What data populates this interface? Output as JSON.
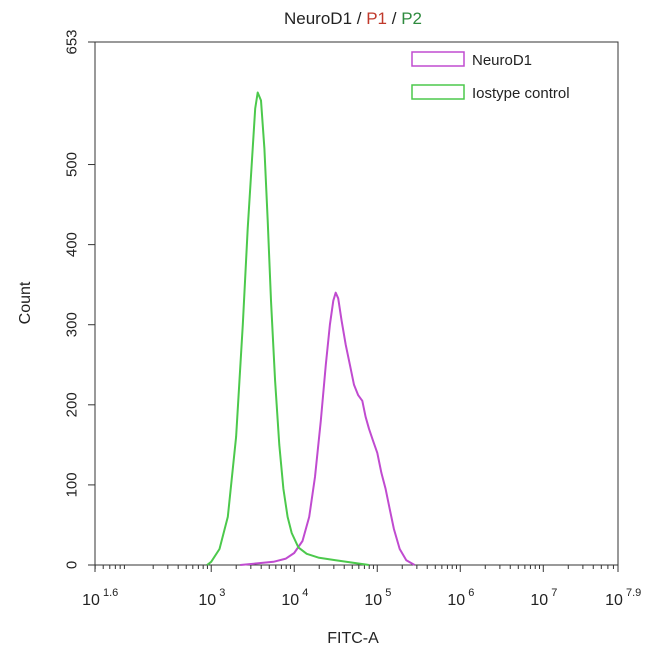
{
  "chart_data": {
    "type": "line",
    "title_parts": [
      {
        "text": "NeuroD1",
        "color": "#222222"
      },
      {
        "text": " / ",
        "color": "#222222"
      },
      {
        "text": "P1",
        "color": "#c0392b"
      },
      {
        "text": " / ",
        "color": "#222222"
      },
      {
        "text": "P2",
        "color": "#2e8b3e"
      }
    ],
    "xlabel": "FITC-A",
    "ylabel": "Count",
    "x_scale": "log10",
    "xlim": [
      1.6,
      7.9
    ],
    "ylim": [
      0,
      653
    ],
    "y_ticks": [
      0,
      100,
      200,
      300,
      400,
      500,
      653
    ],
    "x_ticks": [
      {
        "exp": 1.6,
        "base": "10",
        "sup": "1.6"
      },
      {
        "exp": 3,
        "base": "10",
        "sup": "3"
      },
      {
        "exp": 4,
        "base": "10",
        "sup": "4"
      },
      {
        "exp": 5,
        "base": "10",
        "sup": "5"
      },
      {
        "exp": 6,
        "base": "10",
        "sup": "6"
      },
      {
        "exp": 7,
        "base": "10",
        "sup": "7"
      },
      {
        "exp": 7.9,
        "base": "10",
        "sup": "7.9"
      }
    ],
    "legend_position": "top-right",
    "grid": false,
    "series": [
      {
        "name": "NeuroD1",
        "color": "#c04bd0",
        "points": [
          [
            3.35,
            0
          ],
          [
            3.55,
            2
          ],
          [
            3.75,
            4
          ],
          [
            3.9,
            8
          ],
          [
            4.0,
            15
          ],
          [
            4.1,
            30
          ],
          [
            4.18,
            60
          ],
          [
            4.25,
            110
          ],
          [
            4.32,
            180
          ],
          [
            4.38,
            250
          ],
          [
            4.43,
            300
          ],
          [
            4.47,
            330
          ],
          [
            4.5,
            340
          ],
          [
            4.53,
            333
          ],
          [
            4.57,
            305
          ],
          [
            4.62,
            275
          ],
          [
            4.67,
            250
          ],
          [
            4.72,
            225
          ],
          [
            4.77,
            212
          ],
          [
            4.82,
            205
          ],
          [
            4.86,
            185
          ],
          [
            4.9,
            170
          ],
          [
            4.95,
            155
          ],
          [
            5.0,
            140
          ],
          [
            5.05,
            115
          ],
          [
            5.1,
            95
          ],
          [
            5.15,
            70
          ],
          [
            5.2,
            45
          ],
          [
            5.27,
            20
          ],
          [
            5.35,
            6
          ],
          [
            5.45,
            0
          ]
        ]
      },
      {
        "name": "Iostype control",
        "color": "#4cc94c",
        "points": [
          [
            2.95,
            0
          ],
          [
            3.0,
            4
          ],
          [
            3.1,
            20
          ],
          [
            3.2,
            60
          ],
          [
            3.3,
            160
          ],
          [
            3.38,
            300
          ],
          [
            3.44,
            420
          ],
          [
            3.5,
            520
          ],
          [
            3.53,
            570
          ],
          [
            3.56,
            590
          ],
          [
            3.6,
            580
          ],
          [
            3.64,
            520
          ],
          [
            3.68,
            430
          ],
          [
            3.72,
            330
          ],
          [
            3.77,
            230
          ],
          [
            3.82,
            150
          ],
          [
            3.87,
            95
          ],
          [
            3.92,
            60
          ],
          [
            3.97,
            40
          ],
          [
            4.05,
            22
          ],
          [
            4.15,
            14
          ],
          [
            4.3,
            9
          ],
          [
            4.5,
            6
          ],
          [
            4.7,
            3
          ],
          [
            4.9,
            0
          ]
        ]
      }
    ]
  }
}
